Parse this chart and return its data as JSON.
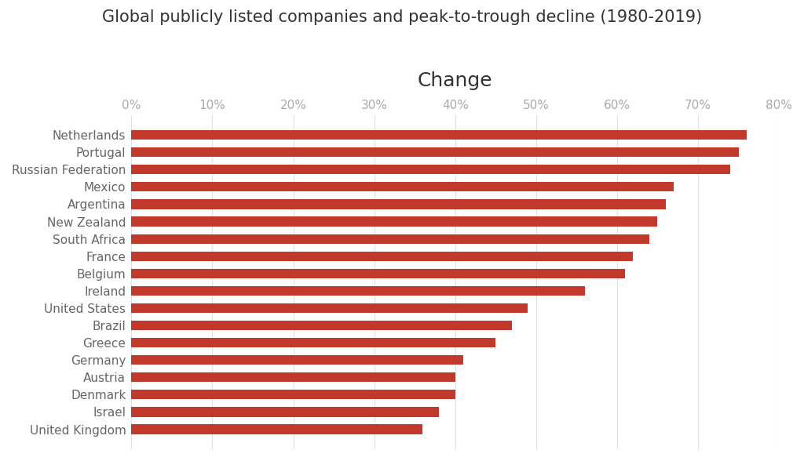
{
  "title": "Global publicly listed companies and peak-to-trough decline (1980-2019)",
  "xlabel": "Change",
  "categories": [
    "Netherlands",
    "Portugal",
    "Russian Federation",
    "Mexico",
    "Argentina",
    "New Zealand",
    "South Africa",
    "France",
    "Belgium",
    "Ireland",
    "United States",
    "Brazil",
    "Greece",
    "Germany",
    "Austria",
    "Denmark",
    "Israel",
    "United Kingdom"
  ],
  "values": [
    76,
    75,
    74,
    67,
    66,
    65,
    64,
    62,
    61,
    56,
    49,
    47,
    45,
    41,
    40,
    40,
    38,
    36
  ],
  "bar_color": "#c0392b",
  "background_color": "#ffffff",
  "xlim": [
    0,
    80
  ],
  "xticks": [
    0,
    10,
    20,
    30,
    40,
    50,
    60,
    70,
    80
  ],
  "tick_label_color": "#aaaaaa",
  "grid_color": "#e0e0e0",
  "title_fontsize": 15,
  "label_fontsize": 18,
  "tick_fontsize": 11,
  "ytick_fontsize": 11,
  "bar_height": 0.55
}
